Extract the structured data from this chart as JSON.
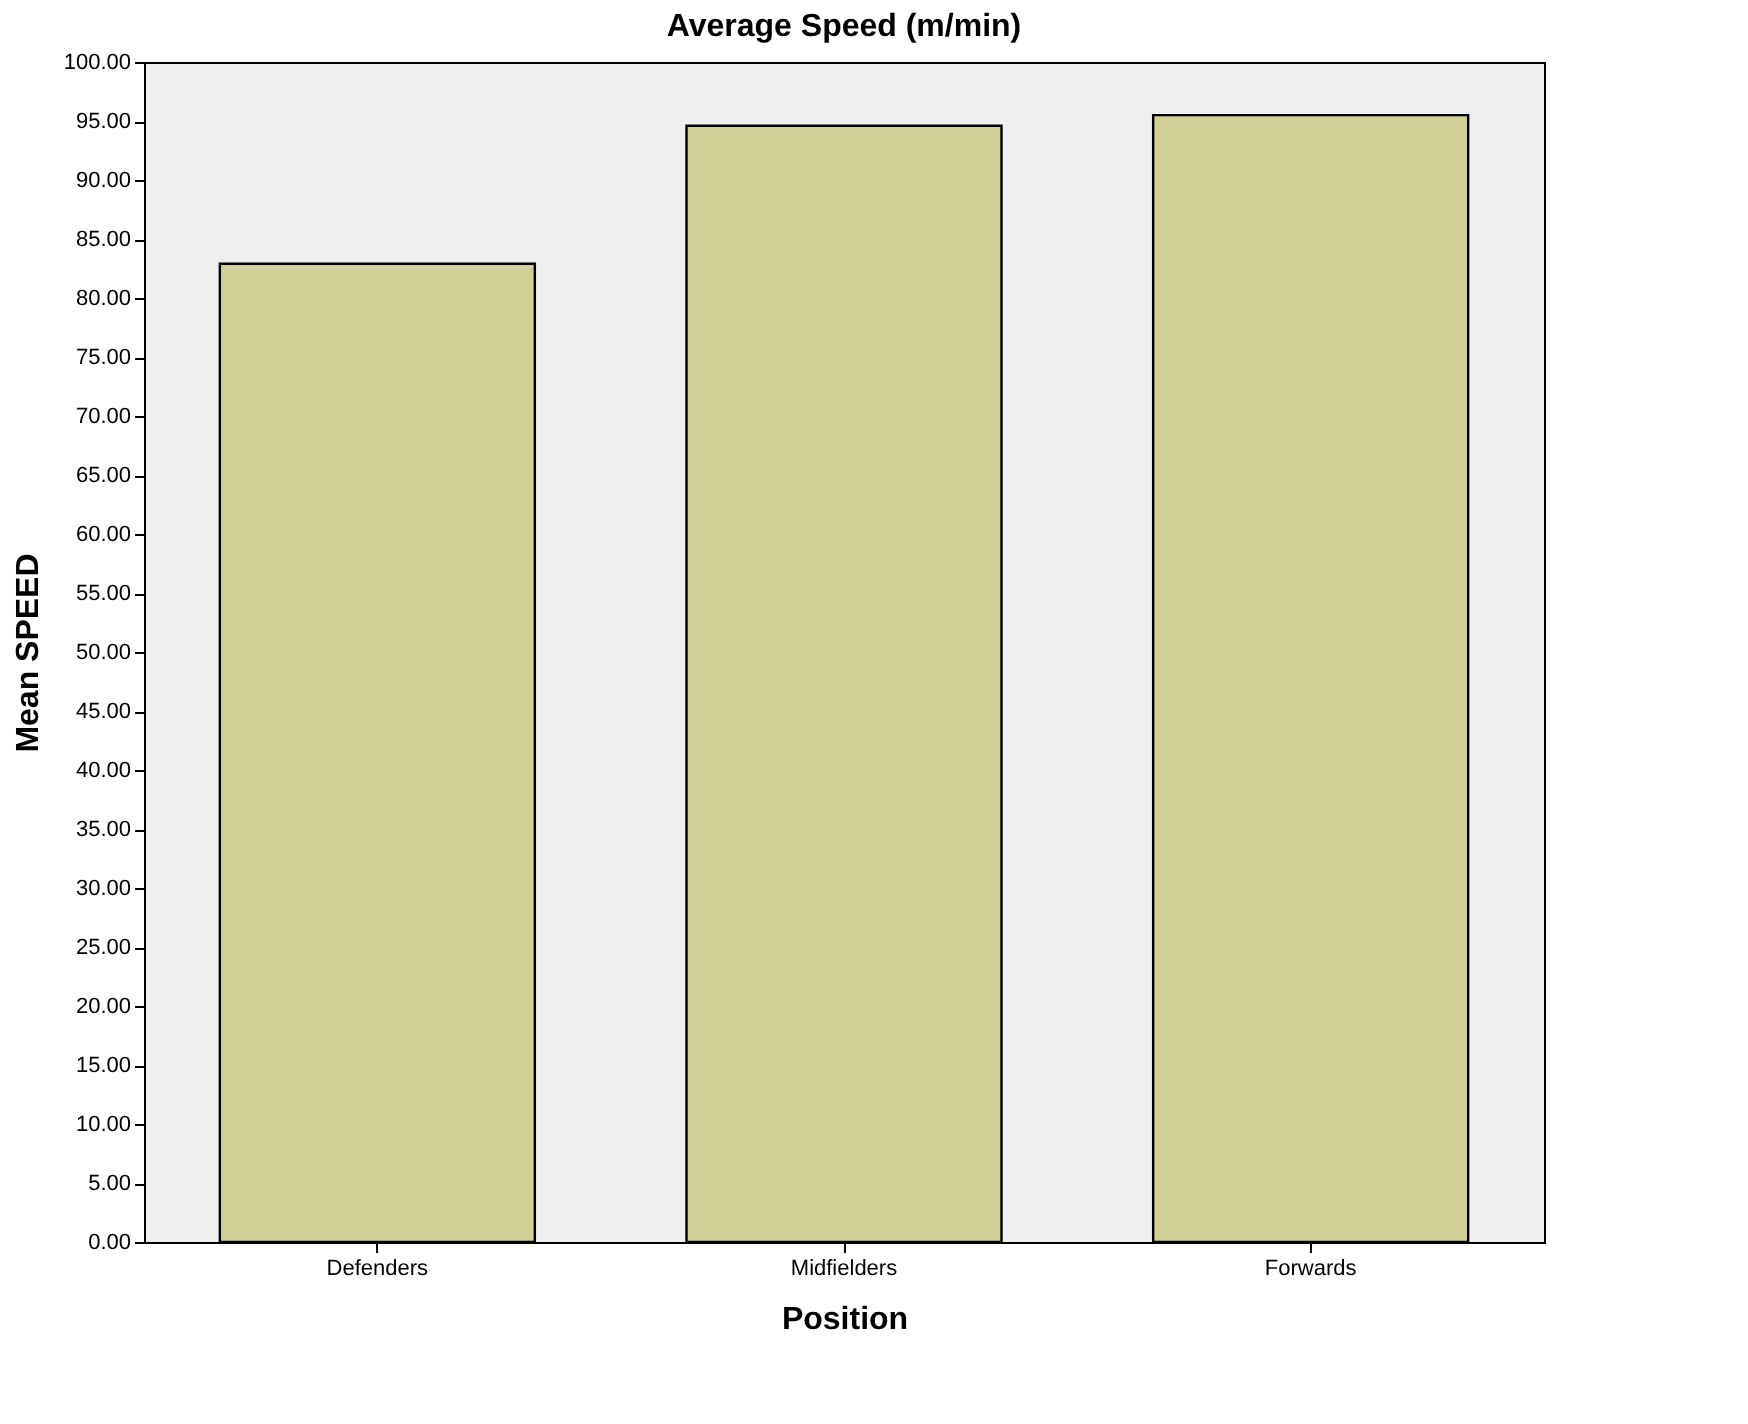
{
  "chart_data": {
    "type": "bar",
    "title": "Average Speed (m/min)",
    "xlabel": "Position",
    "ylabel": "Mean SPEED",
    "categories": [
      "Defenders",
      "Midfielders",
      "Forwards"
    ],
    "values": [
      82.9,
      94.6,
      95.5
    ],
    "color": "#d3cf98",
    "ylim": [
      0,
      100
    ],
    "yticks": [
      {
        "value": 0,
        "label": "0.00"
      },
      {
        "value": 5,
        "label": "5.00"
      },
      {
        "value": 10,
        "label": "10.00"
      },
      {
        "value": 15,
        "label": "15.00"
      },
      {
        "value": 20,
        "label": "20.00"
      },
      {
        "value": 25,
        "label": "25.00"
      },
      {
        "value": 30,
        "label": "30.00"
      },
      {
        "value": 35,
        "label": "35.00"
      },
      {
        "value": 40,
        "label": "40.00"
      },
      {
        "value": 45,
        "label": "45.00"
      },
      {
        "value": 50,
        "label": "50.00"
      },
      {
        "value": 55,
        "label": "55.00"
      },
      {
        "value": 60,
        "label": "60.00"
      },
      {
        "value": 65,
        "label": "65.00"
      },
      {
        "value": 70,
        "label": "70.00"
      },
      {
        "value": 75,
        "label": "75.00"
      },
      {
        "value": 80,
        "label": "80.00"
      },
      {
        "value": 85,
        "label": "85.00"
      },
      {
        "value": 90,
        "label": "90.00"
      },
      {
        "value": 95,
        "label": "95.00"
      },
      {
        "value": 100,
        "label": "100.00"
      }
    ],
    "grid": false
  }
}
